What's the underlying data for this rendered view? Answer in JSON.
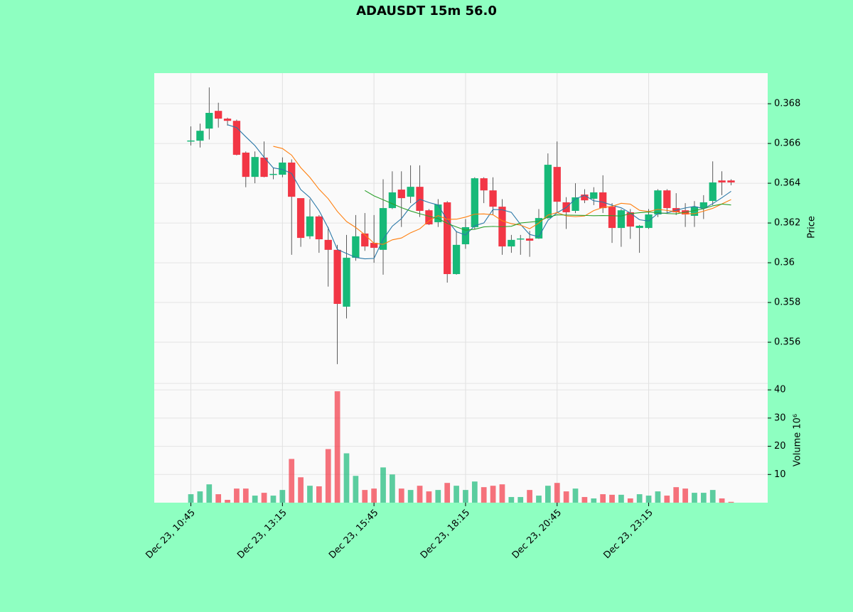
{
  "chart_data": {
    "type": "candlestick",
    "title": "ADAUSDT 15m 56.0",
    "ylabel": "Price",
    "y2label": "Volume  10⁶",
    "up_color": "#17b978",
    "down_color": "#f23645",
    "xticks": [
      {
        "value": 0,
        "label": "Dec 23, 10:45"
      },
      {
        "value": 10,
        "label": "Dec 23, 13:15"
      },
      {
        "value": 20,
        "label": "Dec 23, 15:45"
      },
      {
        "value": 30,
        "label": "Dec 23, 18:15"
      },
      {
        "value": 40,
        "label": "Dec 23, 20:45"
      },
      {
        "value": 50,
        "label": "Dec 23, 23:15"
      }
    ],
    "xlim": [
      -4,
      63
    ],
    "ylim": [
      0.35393,
      0.36954
    ],
    "yticks": [
      0.356,
      0.358,
      0.36,
      0.362,
      0.364,
      0.366,
      0.368
    ],
    "y2lim": [
      0,
      42.3
    ],
    "y2ticks": [
      10,
      20,
      30,
      40
    ],
    "grid": true,
    "moving_averages": [
      {
        "period": 5,
        "color": "#2a78a8"
      },
      {
        "period": 10,
        "color": "#ff7f0e"
      },
      {
        "period": 20,
        "color": "#2ca02c"
      }
    ],
    "open": [
      0.3661,
      0.36614,
      0.36675,
      0.36764,
      0.36725,
      0.36714,
      0.36554,
      0.36432,
      0.36529,
      0.36445,
      0.36443,
      0.36504,
      0.36325,
      0.36133,
      0.36233,
      0.36115,
      0.36065,
      0.35779,
      0.36025,
      0.36147,
      0.361,
      0.36065,
      0.36275,
      0.36368,
      0.36332,
      0.36382,
      0.36264,
      0.36204,
      0.36304,
      0.35943,
      0.36093,
      0.36179,
      0.36425,
      0.36364,
      0.36282,
      0.36082,
      0.36118,
      0.36122,
      0.36122,
      0.36225,
      0.36482,
      0.36304,
      0.36261,
      0.36343,
      0.36322,
      0.36354,
      0.36282,
      0.36175,
      0.36254,
      0.36175,
      0.36175,
      0.36243,
      0.36364,
      0.36275,
      0.36264,
      0.36236,
      0.36275,
      0.36311,
      0.36414,
      0.36414
    ],
    "high": [
      0.36686,
      0.367,
      0.36882,
      0.36805,
      0.3673,
      0.3672,
      0.3656,
      0.3656,
      0.3661,
      0.3648,
      0.3653,
      0.3652,
      0.3632,
      0.3632,
      0.3624,
      0.3618,
      0.3609,
      0.3614,
      0.3624,
      0.3625,
      0.3624,
      0.3642,
      0.3646,
      0.3646,
      0.3649,
      0.3649,
      0.3627,
      0.3632,
      0.3631,
      0.3616,
      0.3622,
      0.3643,
      0.3643,
      0.3643,
      0.3632,
      0.3614,
      0.3614,
      0.3616,
      0.3627,
      0.3655,
      0.3661,
      0.3633,
      0.364,
      0.3637,
      0.3638,
      0.3644,
      0.363,
      0.3627,
      0.3627,
      0.3619,
      0.3627,
      0.3637,
      0.3637,
      0.3635,
      0.363,
      0.3631,
      0.3634,
      0.3651,
      0.3646,
      0.3642
    ],
    "low": [
      0.3659,
      0.3658,
      0.3662,
      0.3668,
      0.3669,
      0.3654,
      0.3638,
      0.364,
      0.3643,
      0.3642,
      0.3643,
      0.3604,
      0.3608,
      0.3612,
      0.3605,
      0.3588,
      0.3549,
      0.3572,
      0.3601,
      0.3606,
      0.36,
      0.3594,
      0.3627,
      0.3618,
      0.363,
      0.3623,
      0.3619,
      0.3618,
      0.359,
      0.3594,
      0.3607,
      0.3617,
      0.363,
      0.3624,
      0.3604,
      0.3605,
      0.3604,
      0.3603,
      0.3612,
      0.3622,
      0.3625,
      0.3617,
      0.3625,
      0.363,
      0.3629,
      0.3625,
      0.361,
      0.3608,
      0.3612,
      0.3605,
      0.3617,
      0.3623,
      0.3625,
      0.3624,
      0.3618,
      0.3618,
      0.3622,
      0.3629,
      0.3634,
      0.3639
    ],
    "close": [
      0.36615,
      0.36664,
      0.36754,
      0.36725,
      0.36714,
      0.36543,
      0.36432,
      0.36532,
      0.36432,
      0.36447,
      0.36504,
      0.36332,
      0.36125,
      0.36233,
      0.36118,
      0.36065,
      0.35793,
      0.36025,
      0.36133,
      0.36082,
      0.36075,
      0.36275,
      0.36354,
      0.36325,
      0.36382,
      0.36261,
      0.36193,
      0.36293,
      0.35943,
      0.3609,
      0.36179,
      0.36425,
      0.36364,
      0.36282,
      0.36082,
      0.36115,
      0.36122,
      0.36111,
      0.36225,
      0.36493,
      0.36307,
      0.36254,
      0.36329,
      0.36314,
      0.36354,
      0.36275,
      0.36175,
      0.36264,
      0.36182,
      0.36186,
      0.36243,
      0.36364,
      0.36275,
      0.36254,
      0.36243,
      0.36282,
      0.36304,
      0.36404,
      0.36404,
      0.36404
    ],
    "volume": [
      3,
      4,
      6.5,
      3,
      1,
      5,
      5,
      2.5,
      3.5,
      2.5,
      4.5,
      15.5,
      9,
      6,
      5.8,
      19,
      39.5,
      17.5,
      9.5,
      4.5,
      5,
      12.5,
      10,
      5,
      4.5,
      6,
      4,
      4.5,
      7,
      6,
      4.5,
      7.5,
      5.5,
      6,
      6.5,
      2,
      2,
      4.5,
      2.5,
      6,
      7,
      4,
      5,
      2,
      1.5,
      3,
      2.8,
      2.8,
      1.5,
      3,
      2.5,
      4,
      2.5,
      5.5,
      5,
      3.5,
      3.5,
      4.5,
      1.5,
      0.3
    ]
  }
}
